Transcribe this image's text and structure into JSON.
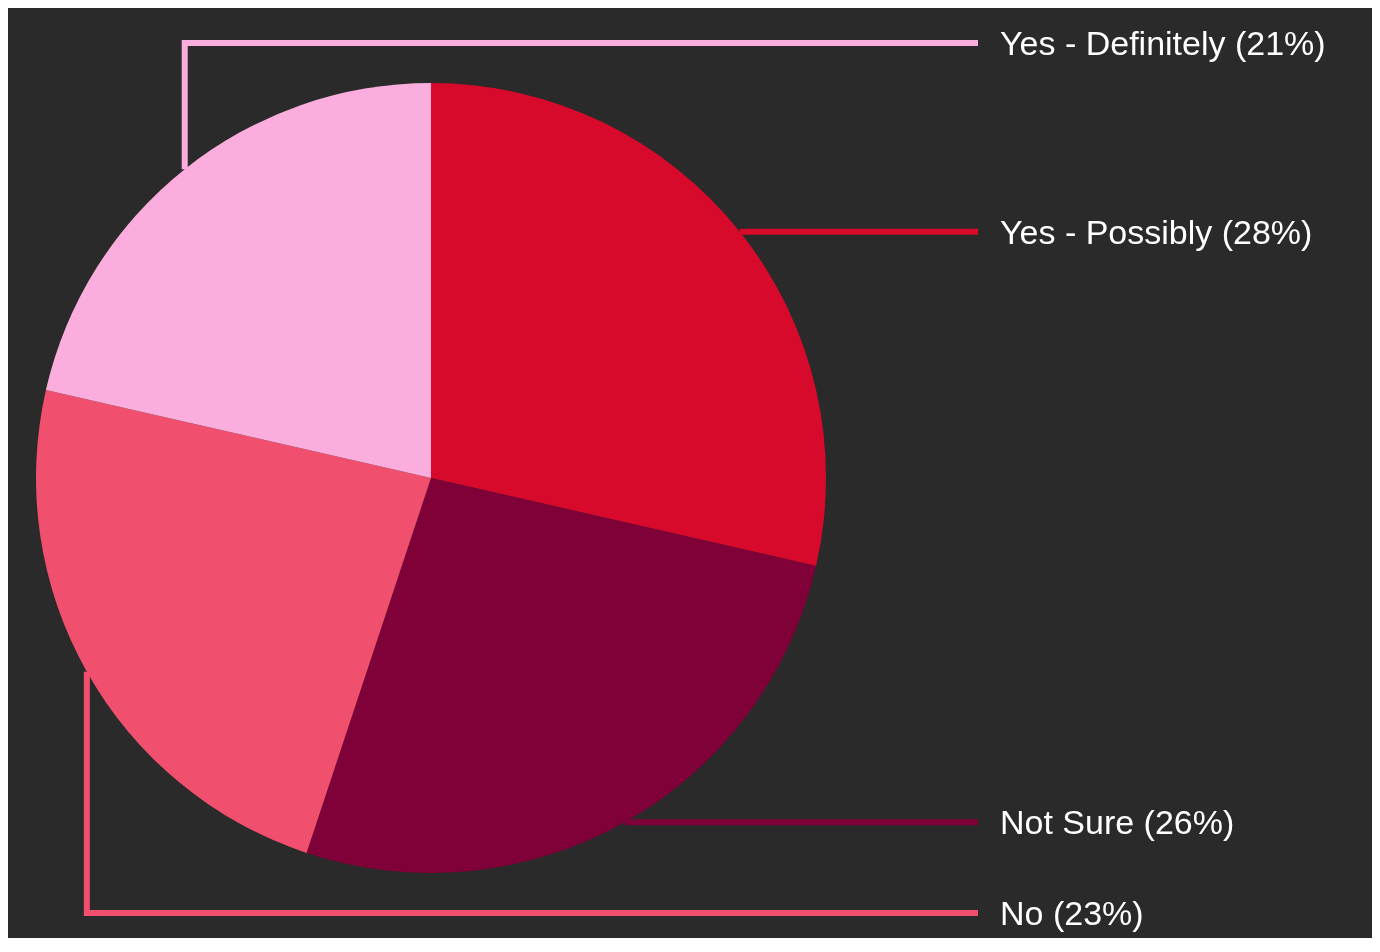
{
  "chart_data": {
    "type": "pie",
    "categories": [
      "Yes - Possibly",
      "Not Sure",
      "No",
      "Yes - Definitely"
    ],
    "values": [
      28,
      26,
      23,
      21
    ],
    "colors": [
      "#d80a2b",
      "#800038",
      "#f04f6e",
      "#fbaedd"
    ],
    "value_labels": [
      "(28%)",
      "(26%)",
      "(23%)",
      "(21%)"
    ]
  }
}
